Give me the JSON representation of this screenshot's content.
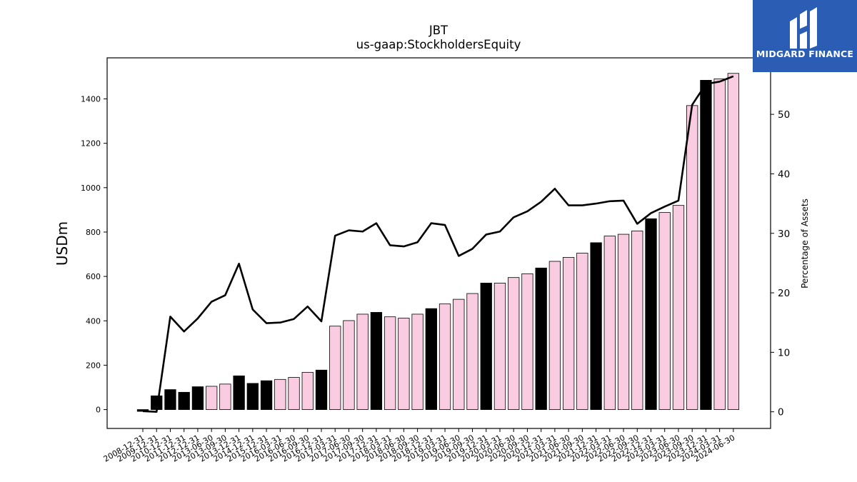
{
  "brand": {
    "name": "MIDGARD FINANCE",
    "bg_color": "#2b5db5",
    "icon": "midgard-logo-icon"
  },
  "chart_data": {
    "type": "bar",
    "title": "JBT",
    "subtitle": "us-gaap:StockholdersEquity",
    "ylabel": "USDm",
    "y2label": "Percentage of Assets",
    "ylim": [
      -85,
      1585
    ],
    "y2lim": [
      -2.8,
      59.5
    ],
    "yticks": [
      0,
      200,
      400,
      600,
      800,
      1000,
      1200,
      1400
    ],
    "y2ticks": [
      0,
      10,
      20,
      30,
      40,
      50
    ],
    "colors": {
      "annual": "#000000",
      "quarterly": "#f9cce1",
      "line": "#000000"
    },
    "categories": [
      "2008-12-31",
      "2009-12-31",
      "2010-12-31",
      "2011-12-31",
      "2012-12-31",
      "2013-06-30",
      "2013-09-30",
      "2013-12-31",
      "2014-12-31",
      "2015-12-31",
      "2016-03-31",
      "2016-06-30",
      "2016-09-30",
      "2016-12-31",
      "2017-03-31",
      "2017-06-30",
      "2017-09-30",
      "2017-12-31",
      "2018-03-31",
      "2018-06-30",
      "2018-09-30",
      "2018-12-31",
      "2019-03-31",
      "2019-06-30",
      "2019-09-30",
      "2019-12-31",
      "2020-03-31",
      "2020-06-30",
      "2020-09-30",
      "2020-12-31",
      "2021-03-31",
      "2021-06-30",
      "2021-09-30",
      "2021-12-31",
      "2022-03-31",
      "2022-06-30",
      "2022-09-30",
      "2022-12-31",
      "2023-03-31",
      "2023-06-30",
      "2023-09-30",
      "2023-12-31",
      "2024-03-31",
      "2024-06-30"
    ],
    "series": [
      {
        "type": "bar",
        "values": [
          -8,
          62,
          90,
          78,
          103,
          105,
          115,
          152,
          118,
          130,
          136,
          145,
          168,
          178,
          376,
          401,
          430,
          438,
          418,
          412,
          430,
          455,
          476,
          497,
          523,
          570,
          570,
          595,
          612,
          638,
          668,
          686,
          705,
          752,
          782,
          790,
          805,
          860,
          888,
          920,
          1370,
          1484,
          1490,
          1515
        ],
        "highlight": [
          true,
          true,
          true,
          true,
          true,
          false,
          false,
          true,
          true,
          true,
          false,
          false,
          false,
          true,
          false,
          false,
          false,
          true,
          false,
          false,
          false,
          true,
          false,
          false,
          false,
          true,
          false,
          false,
          false,
          true,
          false,
          false,
          false,
          true,
          false,
          false,
          false,
          true,
          false,
          false,
          false,
          true,
          false,
          false
        ]
      },
      {
        "type": "line",
        "axis": "right",
        "values": [
          0.1,
          0.0,
          16.0,
          13.5,
          15.7,
          18.5,
          19.6,
          24.9,
          17.2,
          14.9,
          15.0,
          15.6,
          17.7,
          15.2,
          29.6,
          30.5,
          30.3,
          31.7,
          28.0,
          27.8,
          28.5,
          31.7,
          31.4,
          26.2,
          27.4,
          29.8,
          30.3,
          32.7,
          33.7,
          35.3,
          37.5,
          34.7,
          34.7,
          35.0,
          35.4,
          35.5,
          31.6,
          33.4,
          34.5,
          35.5,
          51.6,
          55.1,
          55.5,
          56.4
        ]
      }
    ]
  }
}
